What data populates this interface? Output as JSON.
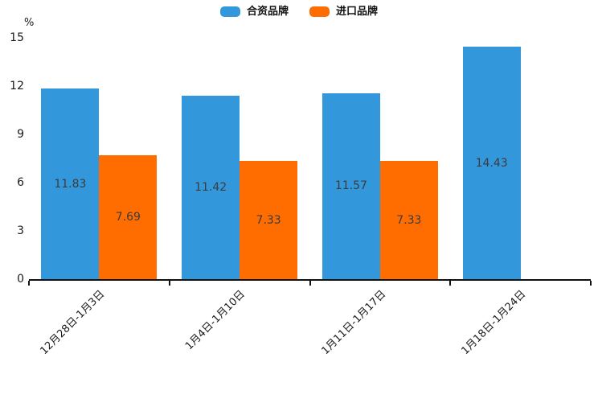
{
  "chart_data": {
    "type": "bar",
    "title": "",
    "xlabel": "",
    "ylabel": "%",
    "categories": [
      "12月28日-1月3日",
      "1月4日-1月10日",
      "1月11日-1月17日",
      "1月18日-1月24日"
    ],
    "series": [
      {
        "name": "合资品牌",
        "color": "#3398DB",
        "values": [
          11.83,
          11.42,
          11.57,
          14.43
        ]
      },
      {
        "name": "进口品牌",
        "color": "#FF6C00",
        "values": [
          7.69,
          7.33,
          7.33,
          null
        ]
      }
    ],
    "ylim": [
      0,
      15
    ],
    "yticks": [
      0,
      3,
      6,
      9,
      12,
      15
    ],
    "legend_position": "top-center",
    "grid": false,
    "bar_labels": true,
    "bar_label_position": "center-inside",
    "x_label_rotation_deg": -45
  }
}
